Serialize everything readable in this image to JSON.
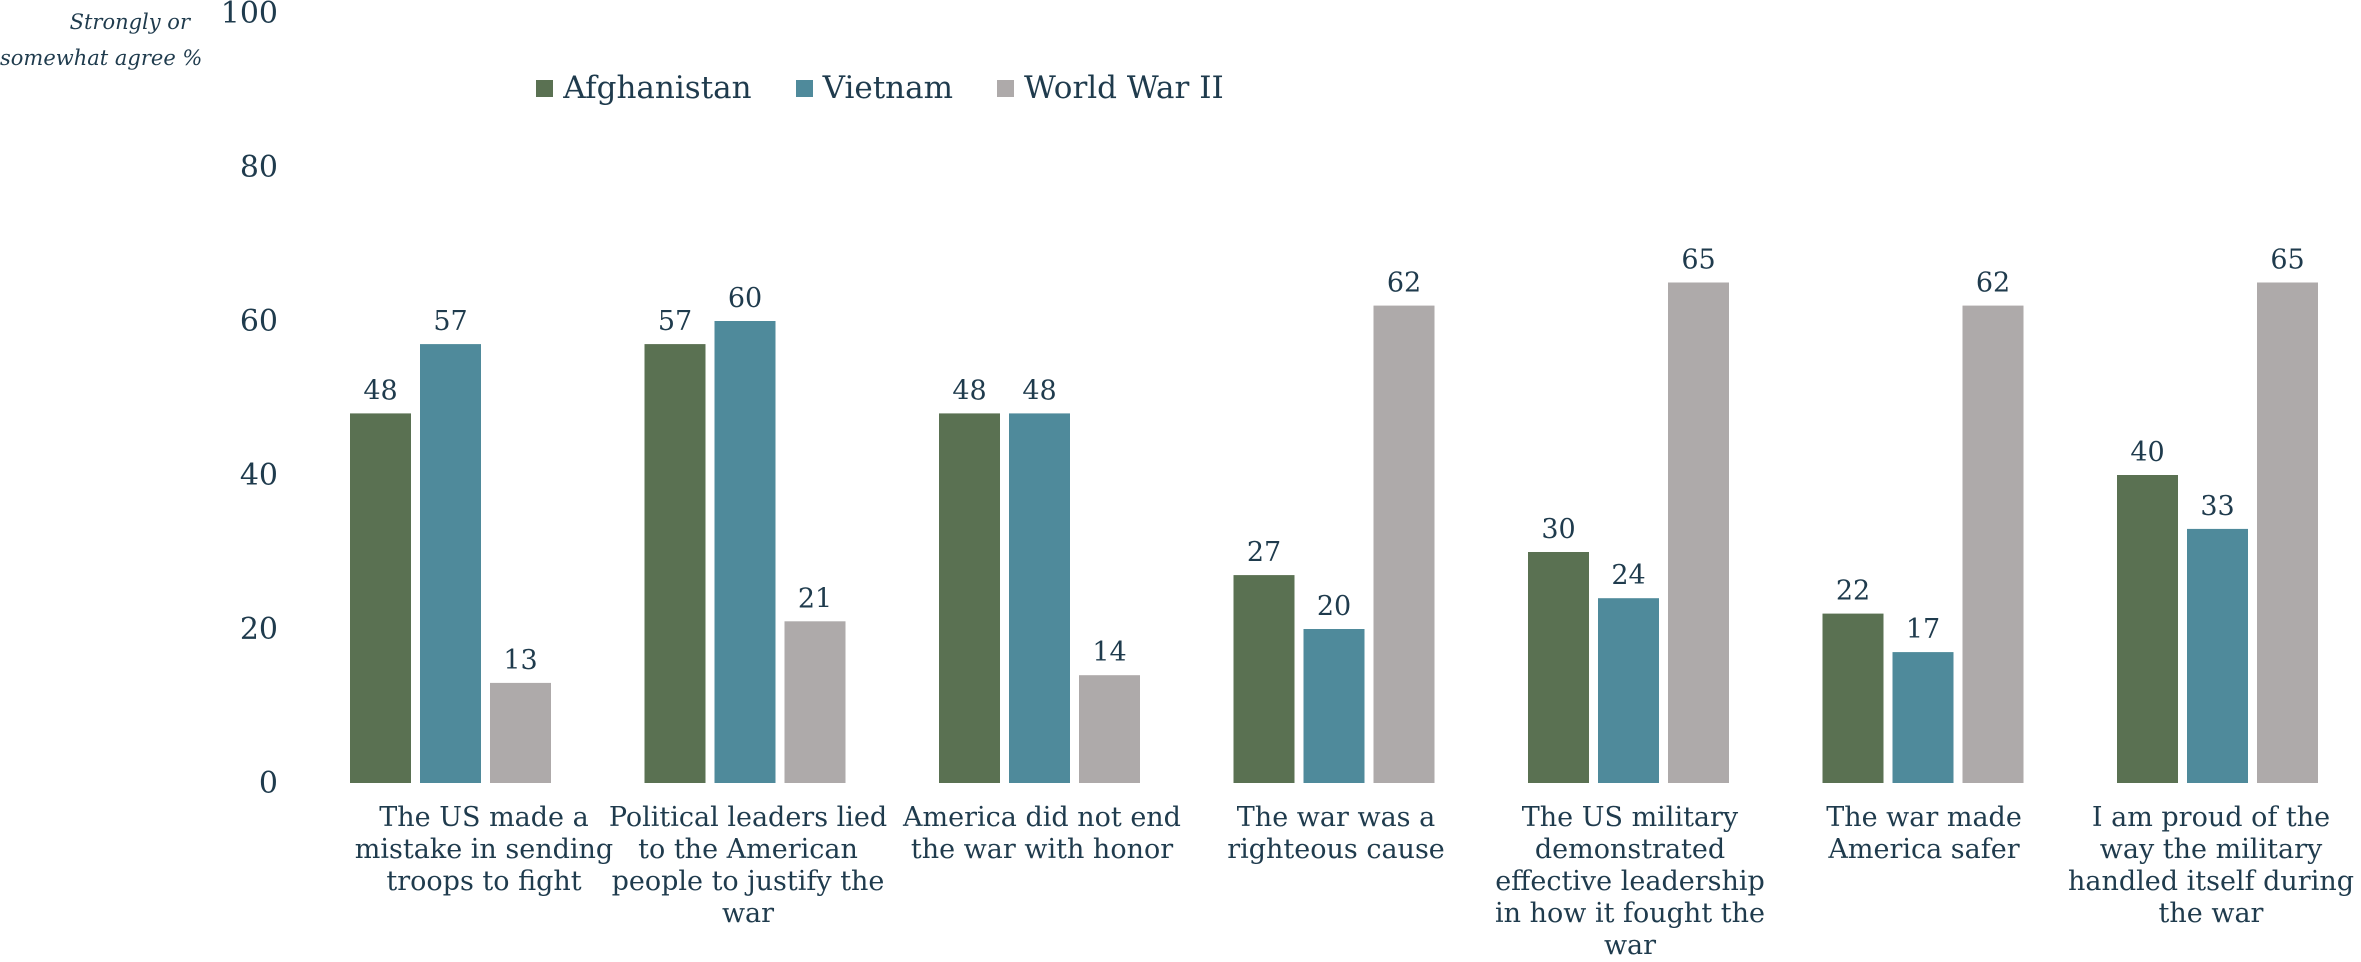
{
  "chart_data": {
    "type": "bar",
    "ylabel_lines": [
      "Strongly or",
      "somewhat agree %"
    ],
    "ylim": [
      0,
      100
    ],
    "yticks": [
      0,
      20,
      40,
      60,
      80,
      100
    ],
    "grid": false,
    "legend_position": "top-center",
    "categories": [
      "The US made a mistake in sending troops to fight",
      "Political leaders lied to the American people to justify the war",
      "America did not end the war with honor",
      "The war was a righteous cause",
      "The US military demonstrated effective leadership in how it fought the war",
      "The war made America safer",
      "I am proud of the way the military handled itself during the war"
    ],
    "series": [
      {
        "name": "Afghanistan",
        "color": "#5a7152",
        "values": [
          48,
          57,
          48,
          27,
          30,
          22,
          40
        ]
      },
      {
        "name": "Vietnam",
        "color": "#4f8a9b",
        "values": [
          57,
          60,
          48,
          20,
          24,
          17,
          33
        ]
      },
      {
        "name": "World War II",
        "color": "#aeaaaa",
        "values": [
          13,
          21,
          14,
          62,
          65,
          62,
          65
        ]
      }
    ]
  }
}
